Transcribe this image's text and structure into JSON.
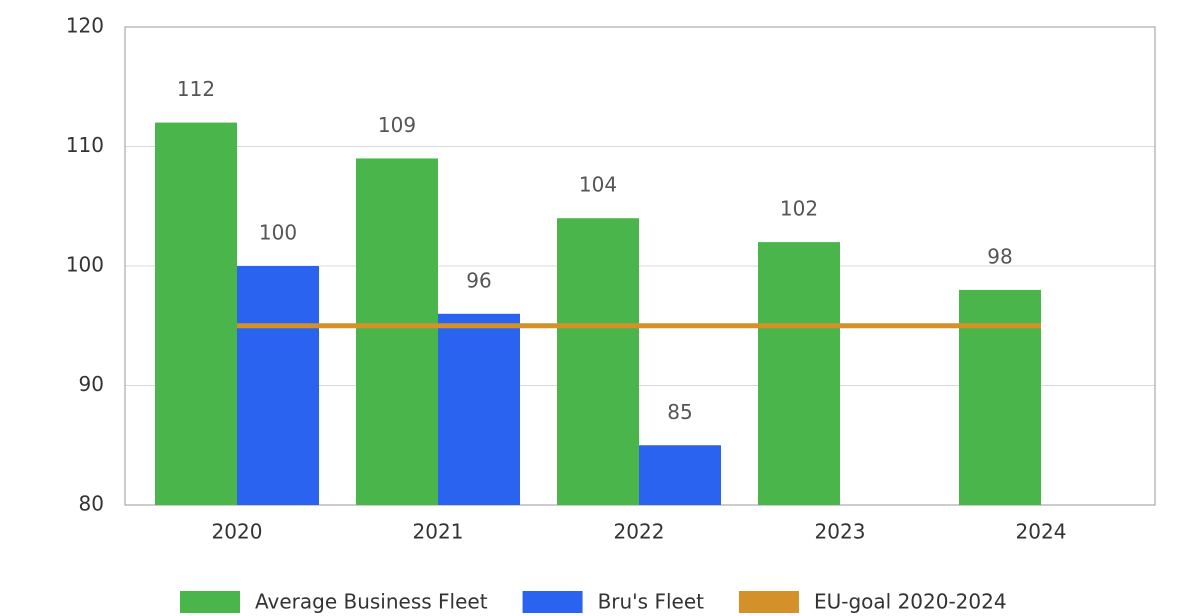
{
  "chart_data": {
    "type": "bar",
    "categories": [
      "2020",
      "2021",
      "2022",
      "2023",
      "2024"
    ],
    "series": [
      {
        "name": "Average Business Fleet",
        "color": "#4ab54a",
        "values": [
          112,
          109,
          104,
          102,
          98
        ]
      },
      {
        "name": "Bru's Fleet",
        "color": "#2a63f0",
        "values": [
          100,
          96,
          85,
          null,
          null
        ]
      },
      {
        "name": "EU-goal 2020-2024",
        "color": "#d4912a",
        "type": "line",
        "values": [
          95,
          95,
          95,
          95,
          95
        ]
      }
    ],
    "ylim": [
      80,
      120
    ],
    "yticks": [
      80,
      90,
      100,
      110,
      120
    ],
    "grid": true,
    "legend": "bottom"
  }
}
